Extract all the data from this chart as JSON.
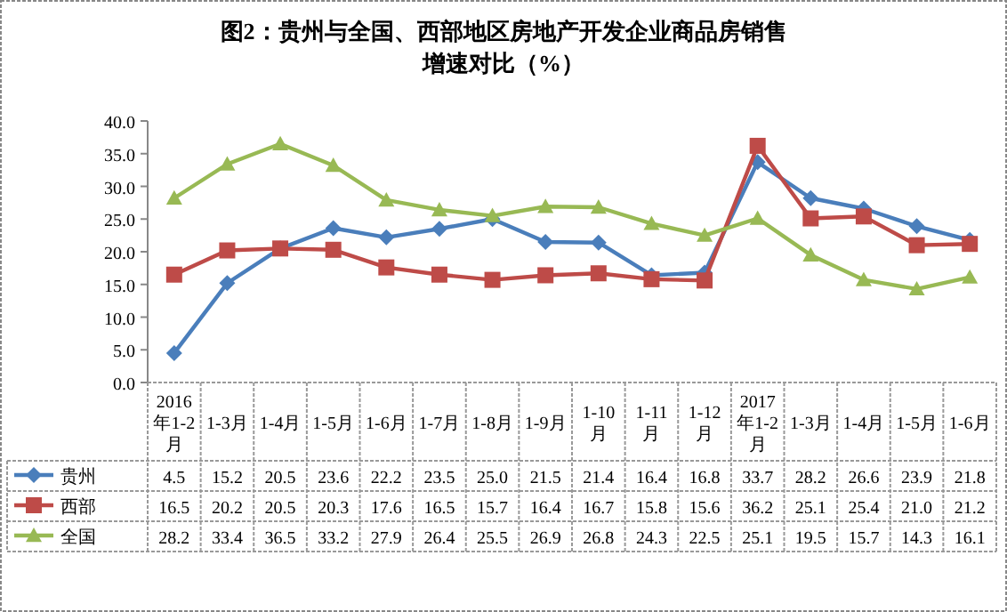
{
  "chart_data": {
    "type": "line",
    "title": "图2：贵州与全国、西部地区房地产开发企业商品房销售增速对比（%）",
    "categories": [
      "2016年1-2月",
      "1-3月",
      "1-4月",
      "1-5月",
      "1-6月",
      "1-7月",
      "1-8月",
      "1-9月",
      "1-10月",
      "1-11月",
      "1-12月",
      "2017年1-2月",
      "1-3月",
      "1-4月",
      "1-5月",
      "1-6月"
    ],
    "series": [
      {
        "name": "贵州",
        "color": "#4a7ebb",
        "marker": "diamond",
        "values": [
          4.5,
          15.2,
          20.5,
          23.6,
          22.2,
          23.5,
          25.0,
          21.5,
          21.4,
          16.4,
          16.8,
          33.7,
          28.2,
          26.6,
          23.9,
          21.8
        ],
        "value_labels": [
          "4.5",
          "15.2",
          "20.5",
          "23.6",
          "22.2",
          "23.5",
          "25.0",
          "21.5",
          "21.4",
          "16.4",
          "16.8",
          "33.7",
          "28.2",
          "26.6",
          "23.9",
          "21.8"
        ]
      },
      {
        "name": "西部",
        "color": "#be4b48",
        "marker": "square",
        "values": [
          16.5,
          20.2,
          20.5,
          20.3,
          17.6,
          16.5,
          15.7,
          16.4,
          16.7,
          15.8,
          15.6,
          36.2,
          25.1,
          25.4,
          21.0,
          21.2
        ],
        "value_labels": [
          "16.5",
          "20.2",
          "20.5",
          "20.3",
          "17.6",
          "16.5",
          "15.7",
          "16.4",
          "16.7",
          "15.8",
          "15.6",
          "36.2",
          "25.1",
          "25.4",
          "21.0",
          "21.2"
        ]
      },
      {
        "name": "全国",
        "color": "#98b954",
        "marker": "triangle",
        "values": [
          28.2,
          33.4,
          36.5,
          33.2,
          27.9,
          26.4,
          25.5,
          26.9,
          26.8,
          24.3,
          22.5,
          25.1,
          19.5,
          15.7,
          14.3,
          16.1
        ],
        "value_labels": [
          "28.2",
          "33.4",
          "36.5",
          "33.2",
          "27.9",
          "26.4",
          "25.5",
          "26.9",
          "26.8",
          "24.3",
          "22.5",
          "25.1",
          "19.5",
          "15.7",
          "14.3",
          "16.1"
        ]
      }
    ],
    "ylim": [
      0,
      40
    ],
    "yticks": [
      {
        "value": 0,
        "label": "0.0"
      },
      {
        "value": 5,
        "label": "5.0"
      },
      {
        "value": 10,
        "label": "10.0"
      },
      {
        "value": 15,
        "label": "15.0"
      },
      {
        "value": 20,
        "label": "20.0"
      },
      {
        "value": 25,
        "label": "25.0"
      },
      {
        "value": 30,
        "label": "30.0"
      },
      {
        "value": 35,
        "label": "35.0"
      },
      {
        "value": 40,
        "label": "40.0"
      }
    ],
    "legend": "bottom",
    "grid": false
  }
}
